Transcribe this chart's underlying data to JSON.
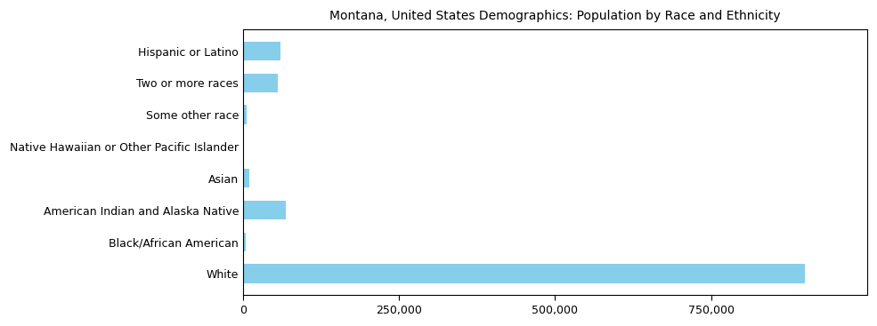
{
  "categories": [
    "White",
    "Black/African American",
    "American Indian and Alaska Native",
    "Asian",
    "Native Hawaiian or Other Pacific Islander",
    "Some other race",
    "Two or more races",
    "Hispanic or Latino"
  ],
  "values": [
    900000,
    5000,
    68000,
    10000,
    800,
    6000,
    55000,
    60000
  ],
  "bar_color": "#87CEEB",
  "title": "Montana, United States Demographics: Population by Race and Ethnicity",
  "xlim": [
    0,
    1000000
  ],
  "xticks": [
    0,
    250000,
    500000,
    750000
  ],
  "xtick_labels": [
    "0",
    "250,000",
    "500,000",
    "750,000"
  ],
  "title_fontsize": 10,
  "tick_fontsize": 9,
  "label_fontsize": 9,
  "bar_height": 0.6,
  "figsize": [
    9.85,
    3.67
  ],
  "dpi": 100
}
